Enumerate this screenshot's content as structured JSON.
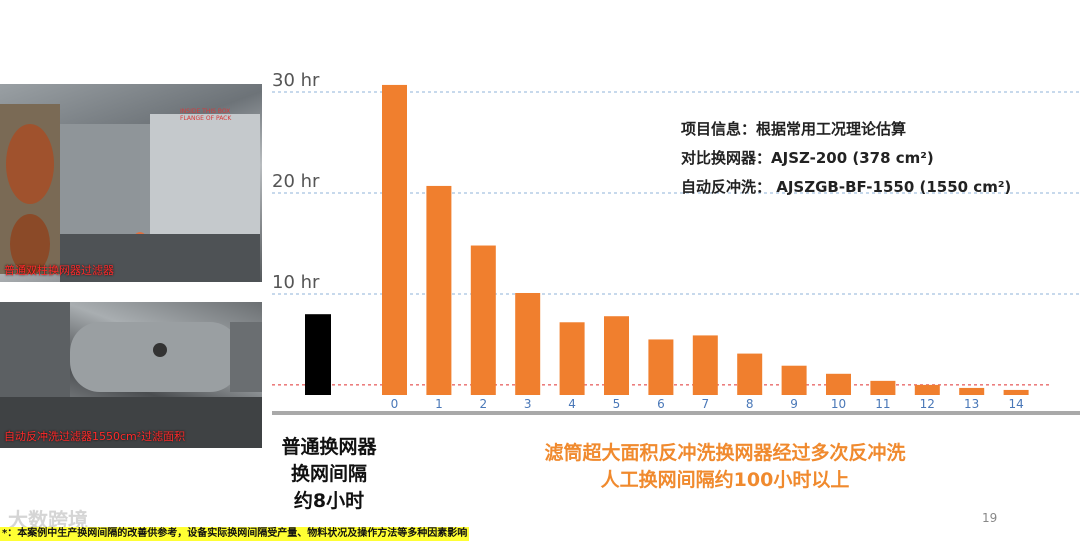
{
  "photos": {
    "top_caption": "普通双柱换网器过滤器",
    "top_note": "INSIDE THIS BOX FLANGE OF PACK",
    "bottom_caption": "自动反冲洗过滤器1550cm²过滤面积"
  },
  "captions": {
    "left": [
      "普通换网器",
      "换网间隔",
      "约8小时"
    ],
    "right": [
      "滤筒超大面积反冲洗换网器经过多次反冲洗",
      "人工换网间隔约100小时以上"
    ]
  },
  "info": {
    "line1": "项目信息：根据常用工况理论估算",
    "line2": "对比换网器：AJSZ-200    (378 cm²)",
    "line3": "自动反冲洗： AJSZGB-BF-1550   (1550 cm²)"
  },
  "page_number": "19",
  "watermark": "大数跨境",
  "footnote": "*：本案例中生产换网间隔的改善供参考，设备实际换网间隔受产量、物料状况及操作方法等多种因素影响",
  "chart_data": {
    "type": "bar",
    "ytick_labels": [
      "30 hr",
      "20 hr",
      "10 hr"
    ],
    "yticks": [
      30,
      20,
      10
    ],
    "ylim": [
      0,
      33
    ],
    "baseline_reference": {
      "value": 8,
      "color": "#000000"
    },
    "categories": [
      "0",
      "1",
      "2",
      "3",
      "4",
      "5",
      "6",
      "7",
      "8",
      "9",
      "10",
      "11",
      "12",
      "13",
      "14"
    ],
    "values": [
      30.7,
      20.7,
      14.8,
      10.1,
      7.2,
      7.8,
      5.5,
      5.9,
      4.1,
      2.9,
      2.1,
      1.4,
      1.0,
      0.7,
      0.5
    ],
    "bar_color": "#f07f2e",
    "red_line": 1.0,
    "grid": "dashed"
  }
}
